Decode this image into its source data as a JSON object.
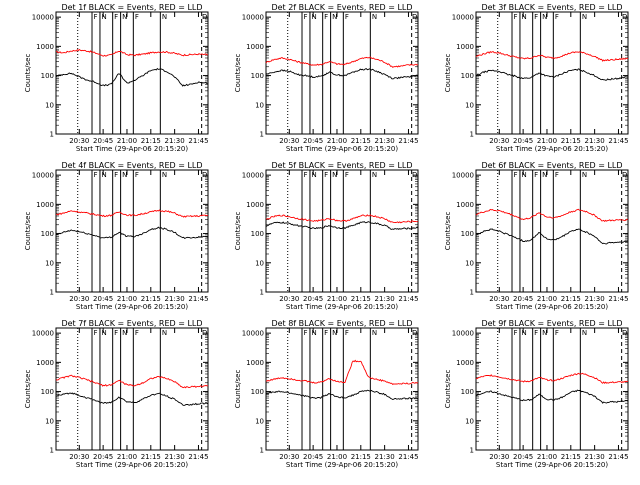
{
  "figure": {
    "xlabel": "Start Time (29-Apr-06 20:15:20)",
    "ylabel": "Counts/sec",
    "x_ticks": [
      "20:30",
      "20:45",
      "21:00",
      "21:15",
      "21:30",
      "21:45"
    ],
    "y_ticks": [
      "1",
      "10",
      "100",
      "1000",
      "10000"
    ],
    "colors": {
      "events": "#000000",
      "lld": "#ff0000",
      "axes": "#000000",
      "background": "#ffffff"
    },
    "marker_labels": [
      "F",
      "N",
      "F",
      "N",
      "F",
      "N",
      "D"
    ]
  },
  "chart_data": [
    {
      "type": "line",
      "title": "Det 1f BLACK = Events, RED = LLD",
      "x": [
        "20:15:20",
        "20:20",
        "20:25",
        "20:30",
        "20:35",
        "20:40",
        "20:45",
        "20:50",
        "20:55",
        "21:00",
        "21:05",
        "21:10",
        "21:15",
        "21:20",
        "21:25",
        "21:30",
        "21:35",
        "21:40",
        "21:45",
        "21:50"
      ],
      "xlim": [
        "20:15:20",
        "21:51"
      ],
      "ylim": [
        1,
        15000
      ],
      "y_scale": "log",
      "series": [
        {
          "values": [
            650,
            600,
            700,
            750,
            700,
            600,
            480,
            500,
            700,
            520,
            500,
            540,
            600,
            650,
            640,
            580,
            500,
            520,
            540,
            520
          ],
          "color": "#ff0000"
        },
        {
          "values": [
            95,
            110,
            120,
            90,
            70,
            60,
            45,
            50,
            120,
            55,
            70,
            100,
            150,
            170,
            140,
            90,
            45,
            50,
            60,
            55
          ],
          "color": "#000000"
        }
      ]
    },
    {
      "type": "line",
      "title": "Det 2f BLACK = Events, RED = LLD",
      "x": [
        "20:15:20",
        "20:20",
        "20:25",
        "20:30",
        "20:35",
        "20:40",
        "20:45",
        "20:50",
        "20:55",
        "21:00",
        "21:05",
        "21:10",
        "21:15",
        "21:20",
        "21:25",
        "21:30",
        "21:35",
        "21:40",
        "21:45",
        "21:50"
      ],
      "xlim": [
        "20:15:20",
        "21:51"
      ],
      "ylim": [
        1,
        15000
      ],
      "y_scale": "log",
      "series": [
        {
          "values": [
            280,
            350,
            400,
            360,
            300,
            260,
            230,
            240,
            300,
            250,
            240,
            300,
            380,
            420,
            360,
            290,
            200,
            210,
            230,
            240
          ],
          "color": "#ff0000"
        },
        {
          "values": [
            110,
            130,
            150,
            140,
            110,
            100,
            90,
            95,
            130,
            105,
            100,
            130,
            160,
            170,
            140,
            110,
            80,
            85,
            90,
            100
          ],
          "color": "#000000"
        }
      ]
    },
    {
      "type": "line",
      "title": "Det 3f BLACK = Events, RED = LLD",
      "x": [
        "20:15:20",
        "20:20",
        "20:25",
        "20:30",
        "20:35",
        "20:40",
        "20:45",
        "20:50",
        "20:55",
        "21:00",
        "21:05",
        "21:10",
        "21:15",
        "21:20",
        "21:25",
        "21:30",
        "21:35",
        "21:40",
        "21:45",
        "21:50"
      ],
      "xlim": [
        "20:15:20",
        "21:51"
      ],
      "ylim": [
        1,
        15000
      ],
      "y_scale": "log",
      "series": [
        {
          "values": [
            450,
            550,
            650,
            600,
            500,
            430,
            380,
            400,
            500,
            420,
            400,
            480,
            600,
            650,
            560,
            450,
            330,
            340,
            360,
            380
          ],
          "color": "#ff0000"
        },
        {
          "values": [
            100,
            130,
            150,
            140,
            110,
            95,
            80,
            85,
            125,
            95,
            90,
            120,
            150,
            160,
            130,
            100,
            70,
            75,
            80,
            90
          ],
          "color": "#000000"
        }
      ]
    },
    {
      "type": "line",
      "title": "Det 4f BLACK = Events, RED = LLD",
      "x": [
        "20:15:20",
        "20:20",
        "20:25",
        "20:30",
        "20:35",
        "20:40",
        "20:45",
        "20:50",
        "20:55",
        "21:00",
        "21:05",
        "21:10",
        "21:15",
        "21:20",
        "21:25",
        "21:30",
        "21:35",
        "21:40",
        "21:45",
        "21:50"
      ],
      "xlim": [
        "20:15:20",
        "21:51"
      ],
      "ylim": [
        1,
        15000
      ],
      "y_scale": "log",
      "series": [
        {
          "values": [
            450,
            500,
            600,
            550,
            500,
            450,
            400,
            420,
            550,
            430,
            420,
            480,
            550,
            620,
            580,
            500,
            380,
            390,
            400,
            420
          ],
          "color": "#ff0000"
        },
        {
          "values": [
            90,
            110,
            130,
            115,
            100,
            85,
            70,
            75,
            110,
            80,
            80,
            100,
            140,
            160,
            140,
            110,
            70,
            72,
            75,
            80
          ],
          "color": "#000000"
        }
      ]
    },
    {
      "type": "line",
      "title": "Det 5f BLACK = Events, RED = LLD",
      "x": [
        "20:15:20",
        "20:20",
        "20:25",
        "20:30",
        "20:35",
        "20:40",
        "20:45",
        "20:50",
        "20:55",
        "21:00",
        "21:05",
        "21:10",
        "21:15",
        "21:20",
        "21:25",
        "21:30",
        "21:35",
        "21:40",
        "21:45",
        "21:50"
      ],
      "xlim": [
        "20:15:20",
        "21:51"
      ],
      "ylim": [
        1,
        15000
      ],
      "y_scale": "log",
      "series": [
        {
          "values": [
            300,
            380,
            420,
            380,
            330,
            300,
            270,
            280,
            330,
            280,
            270,
            320,
            400,
            430,
            380,
            320,
            240,
            245,
            255,
            265
          ],
          "color": "#ff0000"
        },
        {
          "values": [
            180,
            230,
            240,
            220,
            190,
            170,
            150,
            155,
            190,
            160,
            155,
            190,
            240,
            250,
            220,
            190,
            140,
            145,
            150,
            160
          ],
          "color": "#000000"
        }
      ]
    },
    {
      "type": "line",
      "title": "Det 6f BLACK = Events, RED = LLD",
      "x": [
        "20:15:20",
        "20:20",
        "20:25",
        "20:30",
        "20:35",
        "20:40",
        "20:45",
        "20:50",
        "20:55",
        "21:00",
        "21:05",
        "21:10",
        "21:15",
        "21:20",
        "21:25",
        "21:30",
        "21:35",
        "21:40",
        "21:45",
        "21:50"
      ],
      "xlim": [
        "20:15:20",
        "21:51"
      ],
      "ylim": [
        1,
        15000
      ],
      "y_scale": "log",
      "series": [
        {
          "values": [
            450,
            550,
            650,
            600,
            500,
            400,
            300,
            350,
            520,
            370,
            350,
            420,
            560,
            650,
            560,
            420,
            270,
            280,
            290,
            300
          ],
          "color": "#ff0000"
        },
        {
          "values": [
            90,
            120,
            140,
            120,
            95,
            75,
            55,
            60,
            110,
            65,
            60,
            80,
            120,
            140,
            110,
            80,
            45,
            48,
            50,
            55
          ],
          "color": "#000000"
        }
      ]
    },
    {
      "type": "line",
      "title": "Det 7f BLACK = Events, RED = LLD",
      "x": [
        "20:15:20",
        "20:20",
        "20:25",
        "20:30",
        "20:35",
        "20:40",
        "20:45",
        "20:50",
        "20:55",
        "21:00",
        "21:05",
        "21:10",
        "21:15",
        "21:20",
        "21:25",
        "21:30",
        "21:35",
        "21:40",
        "21:45",
        "21:50"
      ],
      "xlim": [
        "20:15:20",
        "21:51"
      ],
      "ylim": [
        1,
        15000
      ],
      "y_scale": "log",
      "series": [
        {
          "values": [
            250,
            300,
            350,
            300,
            250,
            200,
            160,
            170,
            240,
            170,
            160,
            200,
            280,
            320,
            280,
            220,
            140,
            145,
            150,
            155
          ],
          "color": "#ff0000"
        },
        {
          "values": [
            70,
            80,
            90,
            75,
            60,
            50,
            40,
            42,
            65,
            45,
            42,
            55,
            75,
            85,
            70,
            55,
            35,
            36,
            38,
            40
          ],
          "color": "#000000"
        }
      ]
    },
    {
      "type": "line",
      "title": "Det 8f BLACK = Events, RED = LLD",
      "x": [
        "20:15:20",
        "20:20",
        "20:25",
        "20:30",
        "20:35",
        "20:40",
        "20:45",
        "20:50",
        "20:55",
        "21:00",
        "21:05",
        "21:10",
        "21:15",
        "21:20",
        "21:25",
        "21:30",
        "21:35",
        "21:40",
        "21:45",
        "21:50"
      ],
      "xlim": [
        "20:15:20",
        "21:51"
      ],
      "ylim": [
        1,
        15000
      ],
      "y_scale": "log",
      "series": [
        {
          "values": [
            230,
            260,
            300,
            280,
            250,
            230,
            200,
            210,
            280,
            220,
            210,
            1100,
            1100,
            300,
            260,
            230,
            180,
            185,
            190,
            200
          ],
          "color": "#ff0000"
        },
        {
          "values": [
            85,
            95,
            100,
            90,
            80,
            70,
            60,
            62,
            85,
            65,
            62,
            75,
            100,
            110,
            95,
            80,
            55,
            56,
            58,
            60
          ],
          "color": "#000000"
        }
      ]
    },
    {
      "type": "line",
      "title": "Det 9f BLACK = Events, RED = LLD",
      "x": [
        "20:15:20",
        "20:20",
        "20:25",
        "20:30",
        "20:35",
        "20:40",
        "20:45",
        "20:50",
        "20:55",
        "21:00",
        "21:05",
        "21:10",
        "21:15",
        "21:20",
        "21:25",
        "21:30",
        "21:35",
        "21:40",
        "21:45",
        "21:50"
      ],
      "xlim": [
        "20:15:20",
        "21:51"
      ],
      "ylim": [
        1,
        15000
      ],
      "y_scale": "log",
      "series": [
        {
          "values": [
            280,
            330,
            360,
            320,
            280,
            250,
            220,
            230,
            300,
            250,
            240,
            290,
            360,
            420,
            380,
            300,
            200,
            205,
            210,
            215
          ],
          "color": "#ff0000"
        },
        {
          "values": [
            75,
            90,
            100,
            85,
            70,
            60,
            50,
            52,
            80,
            55,
            52,
            65,
            95,
            110,
            90,
            70,
            42,
            44,
            45,
            48
          ],
          "color": "#000000"
        }
      ]
    }
  ]
}
